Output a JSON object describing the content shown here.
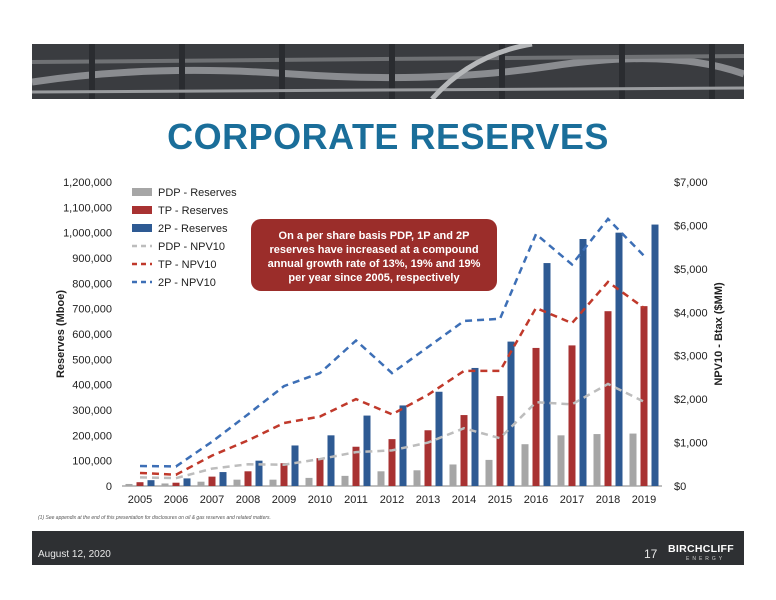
{
  "header": {
    "title": "CORPORATE RESERVES"
  },
  "chart_data": {
    "type": "bar",
    "categories": [
      "2005",
      "2006",
      "2007",
      "2008",
      "2009",
      "2010",
      "2011",
      "2012",
      "2013",
      "2014",
      "2015",
      "2016",
      "2017",
      "2018",
      "2019"
    ],
    "series": [
      {
        "name": "PDP - Reserves",
        "kind": "bar",
        "axis": "left",
        "color": "#a6a6a6",
        "values": [
          8000,
          10000,
          17000,
          25000,
          25000,
          32000,
          40000,
          58000,
          62000,
          85000,
          103000,
          165000,
          200000,
          205000,
          207000
        ]
      },
      {
        "name": "TP - Reserves",
        "kind": "bar",
        "axis": "left",
        "color": "#a83232",
        "values": [
          15000,
          13000,
          37000,
          58000,
          90000,
          110000,
          155000,
          185000,
          220000,
          280000,
          355000,
          545000,
          555000,
          690000,
          710000
        ]
      },
      {
        "name": "2P - Reserves",
        "kind": "bar",
        "axis": "left",
        "color": "#2e5a93",
        "values": [
          23000,
          30000,
          55000,
          100000,
          160000,
          200000,
          278000,
          318000,
          372000,
          466000,
          570000,
          880000,
          975000,
          1000000,
          1032000
        ]
      },
      {
        "name": "PDP - NPV10",
        "kind": "line",
        "axis": "right",
        "color": "#bdbdbd",
        "values": [
          200,
          180,
          400,
          500,
          490,
          620,
          780,
          820,
          1000,
          1330,
          1100,
          1930,
          1880,
          2350,
          1940
        ]
      },
      {
        "name": "TP - NPV10",
        "kind": "line",
        "axis": "right",
        "color": "#c0392b",
        "values": [
          300,
          260,
          700,
          1050,
          1450,
          1600,
          2000,
          1650,
          2100,
          2650,
          2650,
          4100,
          3750,
          4700,
          4100
        ]
      },
      {
        "name": "2P - NPV10",
        "kind": "line",
        "axis": "right",
        "color": "#3d6fb6",
        "values": [
          460,
          450,
          1020,
          1650,
          2300,
          2600,
          3350,
          2600,
          3200,
          3800,
          3850,
          5800,
          5100,
          6150,
          5300
        ]
      }
    ],
    "ylabel": "Reserves (Mboe)",
    "y2label": "NPV10 - Btax ($MM)",
    "ylim": [
      0,
      1200000
    ],
    "y2lim": [
      0,
      7000
    ],
    "yticks": [
      "0",
      "100,000",
      "200,000",
      "300,000",
      "400,000",
      "500,000",
      "600,000",
      "700,000",
      "800,000",
      "900,000",
      "1,000,000",
      "1,100,000",
      "1,200,000"
    ],
    "y2ticks": [
      "$0",
      "$1,000",
      "$2,000",
      "$3,000",
      "$4,000",
      "$5,000",
      "$6,000",
      "$7,000"
    ],
    "legend_position": "top-left",
    "annotation": "On a per share basis PDP, 1P and 2P reserves have increased at a compound annual growth rate of 13%, 19% and 19% per year since 2005, respectively",
    "annotation_lines": [
      "On a per share basis PDP, 1P and 2P",
      "reserves have increased at a compound",
      "annual growth rate of 13%, 19% and 19%",
      "per year since 2005, respectively"
    ],
    "annotation_color": "#9b2d2a"
  },
  "footer": {
    "footnote": "(1)     See appendix at the end of this presentation for disclosures on oil & gas reserves and related matters.",
    "date": "August 12, 2020",
    "page": "17",
    "brand": "BIRCHCLIFF",
    "brand_sub": "ENERGY"
  }
}
